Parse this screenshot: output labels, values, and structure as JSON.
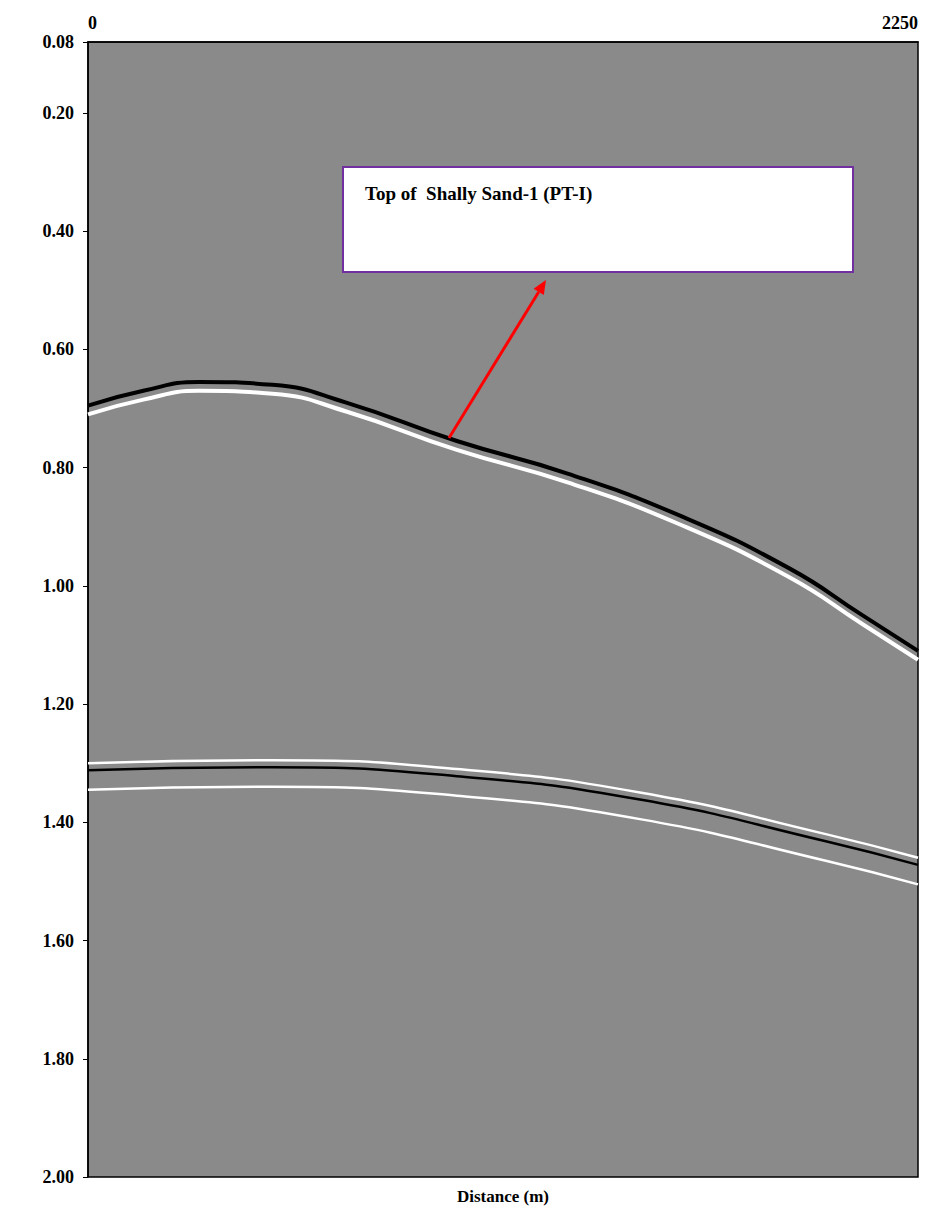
{
  "chart_data": {
    "type": "line",
    "x_label": "Distance (m)",
    "xlim": [
      0,
      2250
    ],
    "xticks": [
      0,
      2250
    ],
    "ylim": [
      0.08,
      2.0
    ],
    "yticks": [
      0.08,
      {
        "value": 0.2,
        "label": "0.20"
      },
      {
        "value": 0.4,
        "label": "0.40"
      },
      {
        "value": 0.6,
        "label": "0.60"
      },
      {
        "value": 0.8,
        "label": "0.80"
      },
      {
        "value": 1.0,
        "label": "1.00"
      },
      {
        "value": 1.2,
        "label": "1.20"
      },
      {
        "value": 1.4,
        "label": "1.40"
      },
      {
        "value": 1.6,
        "label": "1.60"
      },
      {
        "value": 1.8,
        "label": "1.80"
      },
      {
        "value": 2.0,
        "label": "2.00"
      }
    ],
    "grid": false,
    "annotations": [
      {
        "text": "Top of  Shally Sand-1 (PT-I)"
      }
    ],
    "series": [
      {
        "color": "#000000",
        "x": [
          0,
          150,
          300,
          500,
          700,
          1000,
          1300,
          1600,
          1900,
          2100,
          2250
        ],
        "values": [
          0.695,
          0.67,
          0.655,
          0.66,
          0.69,
          0.755,
          0.81,
          0.88,
          0.97,
          1.05,
          1.11
        ]
      },
      {
        "color": "#ffffff",
        "x": [
          0,
          150,
          300,
          500,
          700,
          1000,
          1300,
          1600,
          1900,
          2100,
          2250
        ],
        "values": [
          0.71,
          0.685,
          0.67,
          0.675,
          0.705,
          0.77,
          0.825,
          0.895,
          0.985,
          1.065,
          1.125
        ]
      },
      {
        "color": "#ffffff",
        "x": [
          0,
          500,
          1000,
          1500,
          2000,
          2250
        ],
        "values": [
          1.3,
          1.295,
          1.31,
          1.35,
          1.42,
          1.46
        ]
      },
      {
        "color": "#000000",
        "x": [
          0,
          500,
          1000,
          1500,
          2000,
          2250
        ],
        "values": [
          1.312,
          1.307,
          1.322,
          1.362,
          1.432,
          1.472
        ]
      },
      {
        "color": "#ffffff",
        "x": [
          0,
          500,
          1000,
          1500,
          2000,
          2250
        ],
        "values": [
          1.345,
          1.34,
          1.355,
          1.395,
          1.465,
          1.505
        ]
      }
    ]
  }
}
